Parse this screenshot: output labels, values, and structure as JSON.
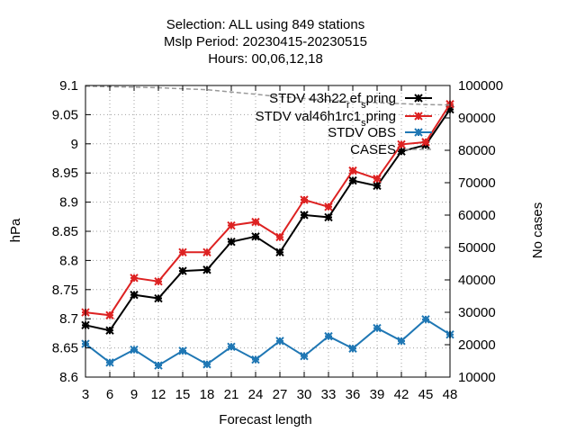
{
  "chart_data": {
    "type": "line",
    "title_lines": [
      "Selection: ALL using   849 stations",
      "Mslp   Period: 20230415-20230515",
      "Hours:  00,06,12,18"
    ],
    "xlabel": "Forecast length",
    "ylabel": "hPa",
    "y2label": "No cases",
    "x": [
      3,
      6,
      9,
      12,
      15,
      18,
      21,
      24,
      27,
      30,
      33,
      36,
      39,
      42,
      45,
      48
    ],
    "xlim": [
      3,
      48
    ],
    "ylim": [
      8.6,
      9.1
    ],
    "y2lim": [
      10000,
      100000
    ],
    "yticks": [
      "8.6",
      "8.65",
      "8.7",
      "8.75",
      "8.8",
      "8.85",
      "8.9",
      "8.95",
      "9",
      "9.05",
      "9.1"
    ],
    "y2ticks": [
      "10000",
      "20000",
      "30000",
      "40000",
      "50000",
      "60000",
      "70000",
      "80000",
      "90000",
      "100000"
    ],
    "grid": true,
    "legend_position": "top-right",
    "series": [
      {
        "name": "STDV 43h22_ref_spring",
        "name_parts": [
          "STDV 43h22",
          "r",
          "ef",
          "s",
          "pring"
        ],
        "color": "#000000",
        "axis": "y",
        "values": [
          8.689,
          8.68,
          8.741,
          8.735,
          8.782,
          8.784,
          8.832,
          8.841,
          8.814,
          8.878,
          8.874,
          8.937,
          8.928,
          8.987,
          8.998,
          9.059
        ]
      },
      {
        "name": "STDV val46h1rc1_spring",
        "name_parts": [
          "STDV val46h1rc1",
          "s",
          "pring"
        ],
        "color": "#dd2222",
        "axis": "y",
        "values": [
          8.711,
          8.706,
          8.77,
          8.764,
          8.814,
          8.814,
          8.86,
          8.866,
          8.84,
          8.904,
          8.892,
          8.954,
          8.94,
          8.999,
          9.003,
          9.068
        ]
      },
      {
        "name": "STDV OBS",
        "color": "#1f77b4",
        "axis": "y",
        "values": [
          8.657,
          8.625,
          8.647,
          8.62,
          8.645,
          8.622,
          8.652,
          8.63,
          8.662,
          8.636,
          8.67,
          8.649,
          8.684,
          8.662,
          8.699,
          8.673
        ]
      },
      {
        "name": "CASES",
        "color": "#999999",
        "axis": "y2",
        "dashed": true,
        "values": [
          99800,
          99600,
          99500,
          99300,
          99000,
          98700,
          98000,
          97300,
          96500,
          96000,
          95500,
          95000,
          94700,
          94400,
          94100,
          94000
        ]
      }
    ]
  }
}
